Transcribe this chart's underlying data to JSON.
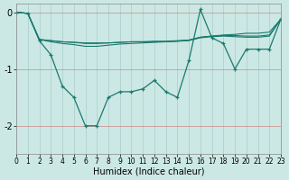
{
  "xlabel": "Humidex (Indice chaleur)",
  "bg_color": "#cce8e4",
  "grid_color": "#aacccc",
  "line_color": "#1a7a6e",
  "xlim": [
    0,
    23
  ],
  "ylim": [
    -2.5,
    0.15
  ],
  "yticks": [
    0,
    -1,
    -2
  ],
  "xticks": [
    0,
    1,
    2,
    3,
    4,
    5,
    6,
    7,
    8,
    9,
    10,
    11,
    12,
    13,
    14,
    15,
    16,
    17,
    18,
    19,
    20,
    21,
    22,
    23
  ],
  "series_main": [
    0.0,
    -0.02,
    -0.5,
    -0.75,
    -1.3,
    -1.5,
    -2.0,
    -2.0,
    -1.5,
    -1.4,
    -1.4,
    -1.35,
    -1.2,
    -1.4,
    -1.5,
    -0.85,
    0.05,
    -0.45,
    -0.55,
    -1.0,
    -0.65,
    -0.65,
    -0.65,
    -0.12
  ],
  "series_s1": [
    0.0,
    -0.02,
    -0.48,
    -0.52,
    -0.55,
    -0.57,
    -0.6,
    -0.6,
    -0.58,
    -0.56,
    -0.55,
    -0.54,
    -0.53,
    -0.52,
    -0.51,
    -0.49,
    -0.44,
    -0.42,
    -0.4,
    -0.39,
    -0.37,
    -0.37,
    -0.35,
    -0.12
  ],
  "series_s2": [
    0.0,
    -0.02,
    -0.48,
    -0.5,
    -0.52,
    -0.53,
    -0.55,
    -0.55,
    -0.54,
    -0.53,
    -0.52,
    -0.52,
    -0.51,
    -0.51,
    -0.5,
    -0.49,
    -0.44,
    -0.42,
    -0.41,
    -0.41,
    -0.42,
    -0.42,
    -0.4,
    -0.12
  ],
  "series_s3": [
    0.0,
    -0.02,
    -0.48,
    -0.5,
    -0.52,
    -0.53,
    -0.54,
    -0.54,
    -0.54,
    -0.53,
    -0.52,
    -0.52,
    -0.52,
    -0.52,
    -0.51,
    -0.5,
    -0.45,
    -0.43,
    -0.42,
    -0.43,
    -0.44,
    -0.44,
    -0.42,
    -0.12
  ]
}
